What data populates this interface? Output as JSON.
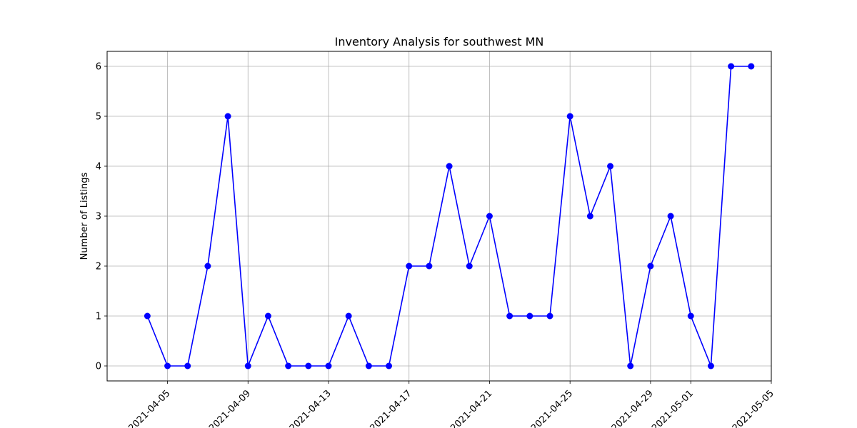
{
  "chart_data": {
    "type": "line",
    "title": "Inventory Analysis for southwest MN",
    "xlabel": "",
    "ylabel": "Number of Listings",
    "x_ticks": [
      "2021-04-05",
      "2021-04-09",
      "2021-04-13",
      "2021-04-17",
      "2021-04-21",
      "2021-04-25",
      "2021-04-29",
      "2021-05-01",
      "2021-05-05"
    ],
    "y_ticks": [
      "0",
      "1",
      "2",
      "3",
      "4",
      "5",
      "6"
    ],
    "xlim": [
      "2021-04-02",
      "2021-05-05"
    ],
    "ylim": [
      -0.3,
      6.3
    ],
    "grid": true,
    "series": [
      {
        "color": "#0000ff",
        "marker": "circle",
        "x": [
          "2021-04-04",
          "2021-04-05",
          "2021-04-06",
          "2021-04-07",
          "2021-04-08",
          "2021-04-09",
          "2021-04-10",
          "2021-04-11",
          "2021-04-12",
          "2021-04-13",
          "2021-04-14",
          "2021-04-15",
          "2021-04-16",
          "2021-04-17",
          "2021-04-18",
          "2021-04-19",
          "2021-04-20",
          "2021-04-21",
          "2021-04-22",
          "2021-04-23",
          "2021-04-24",
          "2021-04-25",
          "2021-04-26",
          "2021-04-27",
          "2021-04-28",
          "2021-04-29",
          "2021-04-30",
          "2021-05-01",
          "2021-05-02",
          "2021-05-03",
          "2021-05-04"
        ],
        "y": [
          1,
          0,
          0,
          2,
          5,
          0,
          1,
          0,
          0,
          0,
          1,
          0,
          0,
          2,
          2,
          4,
          2,
          3,
          1,
          1,
          1,
          5,
          3,
          4,
          0,
          2,
          3,
          1,
          0,
          6,
          6
        ]
      }
    ]
  }
}
